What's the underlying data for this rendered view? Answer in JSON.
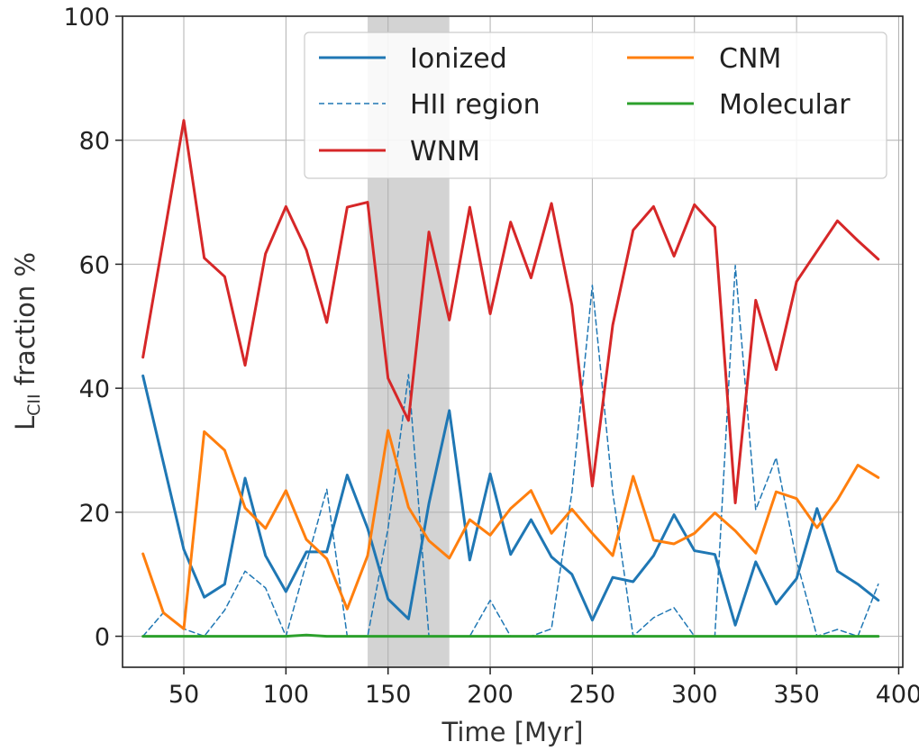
{
  "chart_data": {
    "type": "line",
    "xlabel": "Time [Myr]",
    "ylabel_main": "L",
    "ylabel_sub": "CII",
    "ylabel_rest": " fraction %",
    "xlim": [
      20,
      402
    ],
    "ylim": [
      -5,
      100
    ],
    "xticks": [
      50,
      100,
      150,
      200,
      250,
      300,
      350,
      400
    ],
    "yticks": [
      0,
      20,
      40,
      60,
      80,
      100
    ],
    "grid": true,
    "legend_position": "top-right",
    "shaded_region": {
      "x0": 140,
      "x1": 180,
      "color": "#d3d3d3"
    },
    "x": [
      30,
      40,
      50,
      60,
      70,
      80,
      90,
      100,
      110,
      120,
      130,
      140,
      150,
      160,
      170,
      180,
      190,
      200,
      210,
      220,
      230,
      240,
      250,
      260,
      270,
      280,
      290,
      300,
      310,
      320,
      330,
      340,
      350,
      360,
      370,
      380,
      390
    ],
    "series": [
      {
        "name": "Ionized",
        "color": "#1f77b4",
        "style": "solid",
        "values": [
          42,
          28,
          14,
          6.3,
          8.4,
          25.5,
          13,
          7.2,
          13.6,
          13.6,
          26,
          17.4,
          6,
          2.8,
          21.4,
          36.4,
          12.3,
          26.2,
          13.2,
          18.8,
          12.8,
          10,
          2.6,
          9.5,
          8.8,
          13,
          19.6,
          13.8,
          13.2,
          1.8,
          12,
          5.2,
          9.3,
          20.6,
          10.5,
          8.4,
          5.8
        ]
      },
      {
        "name": "HII region",
        "color": "#1f77b4",
        "style": "dashed",
        "values": [
          0,
          3.8,
          1.2,
          0,
          4.2,
          10.5,
          7.8,
          0,
          11.8,
          23.7,
          0,
          0,
          17.4,
          42.2,
          0,
          0,
          0,
          5.8,
          0,
          0,
          1.2,
          23.2,
          56.6,
          23.2,
          0,
          3,
          4.6,
          0,
          0,
          59.8,
          20.4,
          28.8,
          12.2,
          0,
          1.1,
          0,
          8.4
        ]
      },
      {
        "name": "WNM",
        "color": "#d62728",
        "style": "solid",
        "values": [
          45,
          64,
          83.2,
          61,
          58,
          43.7,
          61.7,
          69.3,
          62.3,
          50.6,
          69.2,
          70,
          41.6,
          34.8,
          65.2,
          51,
          69.2,
          52,
          66.8,
          57.8,
          69.8,
          53.4,
          24.2,
          50.2,
          65.5,
          69.3,
          61.3,
          69.6,
          66,
          21.5,
          54.2,
          43,
          57.2,
          62.1,
          67,
          63.8,
          60.8
        ]
      },
      {
        "name": "CNM",
        "color": "#ff7f0e",
        "style": "solid",
        "values": [
          13.3,
          3.8,
          1.2,
          33,
          30,
          20.7,
          17.4,
          23.5,
          15.6,
          12.5,
          4.4,
          13,
          33.2,
          20.8,
          15.4,
          12.6,
          18.8,
          16.3,
          20.6,
          23.5,
          16.6,
          20.5,
          16.6,
          13,
          25.8,
          15.5,
          14.9,
          16.6,
          19.9,
          17,
          13.4,
          23.3,
          22.2,
          17.5,
          22,
          27.6,
          25.6
        ]
      },
      {
        "name": "Molecular",
        "color": "#2ca02c",
        "style": "solid",
        "values": [
          0,
          0,
          0,
          0,
          0,
          0,
          0,
          0,
          0.2,
          0,
          0,
          0,
          0,
          0,
          0,
          0,
          0,
          0,
          0,
          0,
          0,
          0,
          0,
          0,
          0,
          0,
          0,
          0,
          0,
          0,
          0,
          0,
          0,
          0,
          0,
          0,
          0
        ]
      }
    ],
    "legend": {
      "left_column": [
        "Ionized",
        "HII region",
        "WNM"
      ],
      "right_column": [
        "CNM",
        "Molecular"
      ]
    }
  }
}
